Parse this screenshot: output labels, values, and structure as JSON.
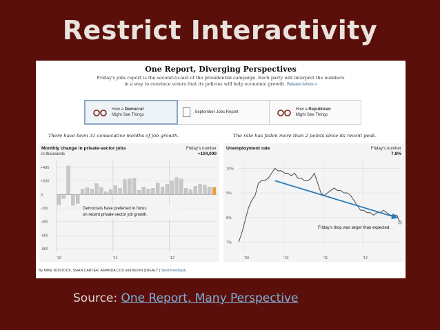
{
  "slide": {
    "title": "Restrict Interactivity",
    "source_label": "Source:",
    "source_link": "One Report, Many Perspective"
  },
  "graphic": {
    "title": "One Report, Diverging Perspectives",
    "subtitle_line1": "Friday's jobs report is the second-to-last of the presidential campaign. Each party will interpret the numbers",
    "subtitle_line2": "in a way to convince voters that its policies will help economic growth.",
    "related_link": "Related Article »",
    "tabs": [
      {
        "line1_prefix": "How a ",
        "line1_bold": "Democrat",
        "line2": "Might See Things",
        "icon": "glasses-icon"
      },
      {
        "label": "September Jobs Report",
        "icon": "document-icon"
      },
      {
        "line1_prefix": "How a ",
        "line1_bold": "Republican",
        "line2": "Might See Things",
        "icon": "glasses-icon"
      }
    ],
    "left_caption": "There have been 31 consecutive months of job growth.",
    "right_caption": "The rate has fallen more than 2 points since its recent peak.",
    "footer_text": "By MIKE BOSTOCK, SHAN CARTER, AMANDA COX and KEVIN QUEALY",
    "footer_sep": "|",
    "footer_link": "Send Feedback",
    "colors": {
      "accent_orange": "#e8a040",
      "bar_gray": "#c8c8c8",
      "arrow_blue": "#2a7ab8",
      "tab_highlight": "#8aa7c7"
    }
  },
  "chart_data": [
    {
      "type": "bar",
      "title": "Monthly change in private-sector jobs",
      "subtitle": "in thousands",
      "callout_label": "Friday's number",
      "callout_value": "+104,000",
      "annotation": "Democrats have preferred to focus on recent private-sector job growth.",
      "annotation_line1": "Democrats have preferred to focus",
      "annotation_line2": "on recent private-sector job growth.",
      "yticks": [
        "+400",
        "+200",
        "0",
        "-200",
        "-400",
        "-600",
        "-800"
      ],
      "ytick_values": [
        400,
        200,
        0,
        -200,
        -400,
        -600,
        -800
      ],
      "ylim": [
        -850,
        450
      ],
      "xticks": [
        "'10",
        "'11",
        "'12"
      ],
      "values": [
        -150,
        -60,
        420,
        -160,
        -130,
        80,
        100,
        80,
        160,
        100,
        40,
        70,
        130,
        90,
        220,
        230,
        240,
        60,
        110,
        80,
        90,
        170,
        110,
        150,
        200,
        250,
        230,
        90,
        70,
        120,
        150,
        140,
        110,
        104
      ],
      "highlight_index": 33
    },
    {
      "type": "line",
      "title": "Unemployment rate",
      "callout_label": "Friday's number",
      "callout_value": "7.8%",
      "annotation": "Friday's drop was larger than expected.",
      "yticks": [
        "10%",
        "9%",
        "8%",
        "7%"
      ],
      "ytick_values": [
        10,
        9,
        8,
        7
      ],
      "ylim": [
        6.6,
        10.4
      ],
      "xticks": [
        "'09",
        "'10",
        "'11",
        "'12"
      ],
      "x": [
        0,
        1,
        2,
        3,
        4,
        5,
        6,
        7,
        8,
        9,
        10,
        11,
        12,
        13,
        14,
        15,
        16,
        17,
        18,
        19,
        20,
        21,
        22,
        23,
        24,
        25,
        26,
        27,
        28,
        29,
        30,
        31,
        32,
        33,
        34,
        35,
        36,
        37,
        38,
        39,
        40,
        41,
        42,
        43,
        44,
        45,
        46,
        47,
        48,
        49
      ],
      "values": [
        7.0,
        7.4,
        7.9,
        8.4,
        8.7,
        8.9,
        9.4,
        9.5,
        9.5,
        9.6,
        9.8,
        10.0,
        9.9,
        9.9,
        9.8,
        9.8,
        9.7,
        9.8,
        9.6,
        9.6,
        9.5,
        9.5,
        9.6,
        9.8,
        9.4,
        9.0,
        8.9,
        9.0,
        9.1,
        9.2,
        9.1,
        9.1,
        9.0,
        9.0,
        8.9,
        8.7,
        8.5,
        8.3,
        8.3,
        8.2,
        8.2,
        8.1,
        8.2,
        8.2,
        8.3,
        8.2,
        8.1,
        8.1,
        8.1,
        7.8
      ],
      "trend_start": [
        11,
        9.5
      ],
      "trend_end": [
        48,
        8.0
      ]
    }
  ]
}
